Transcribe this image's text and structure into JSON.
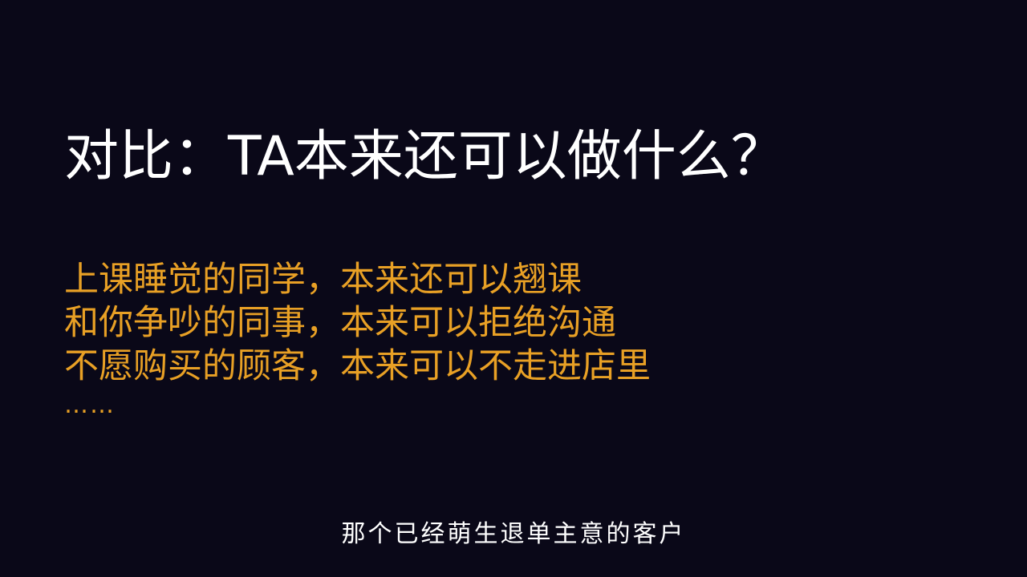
{
  "slide": {
    "title": "对比：TA本来还可以做什么？",
    "items": [
      "上课睡觉的同学，本来还可以翘课",
      "和你争吵的同事，本来可以拒绝沟通",
      "不愿购买的顾客，本来可以不走进店里"
    ],
    "ellipsis": "……",
    "colors": {
      "background": "#0a0818",
      "title": "#ffffff",
      "accent": "#e8a025"
    }
  },
  "subtitle": {
    "text": "那个已经萌生退单主意的客户"
  }
}
